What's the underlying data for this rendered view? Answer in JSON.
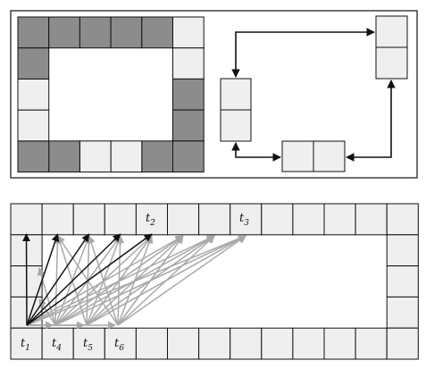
{
  "colors": {
    "dark_cell": "#8c8c8c",
    "light_cell": "#efefef",
    "black_arrow": "#111111",
    "gray_arrow": "#a8a8a8"
  },
  "top_panel": {
    "ring_cells": [
      "dark",
      "dark",
      "dark",
      "dark",
      "dark",
      "light",
      "light",
      "dark",
      "dark",
      "light",
      "light",
      "light",
      "dark",
      "dark",
      "dark",
      "light",
      "light",
      "dark",
      "light",
      "dark"
    ],
    "chain_blocks": [
      "left-vertical-block",
      "bottom-horizontal-block",
      "right-vertical-block"
    ],
    "chain_arrows": "bidirectional"
  },
  "bottom_panel": {
    "labels": {
      "t1": {
        "base": "t",
        "sub": "1"
      },
      "t2": {
        "base": "t",
        "sub": "2"
      },
      "t3": {
        "base": "t",
        "sub": "3"
      },
      "t4": {
        "base": "t",
        "sub": "4"
      },
      "t5": {
        "base": "t",
        "sub": "5"
      },
      "t6": {
        "base": "t",
        "sub": "6"
      }
    }
  }
}
